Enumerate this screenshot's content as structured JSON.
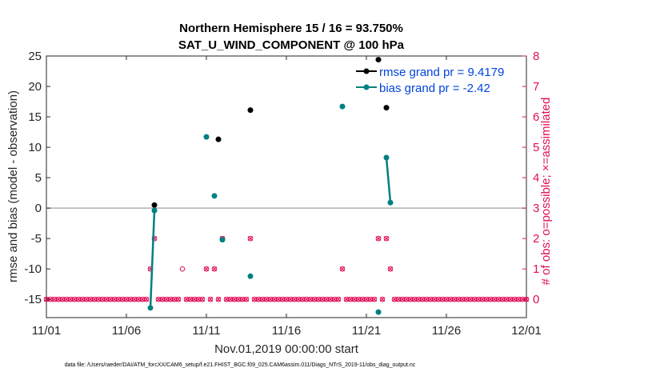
{
  "colors": {
    "rmse": "#000000",
    "bias": "#008080",
    "obs": "#e0105a",
    "zero": "#b0b0b0",
    "legend_text": "#0044dd",
    "axis": "#262626"
  },
  "chart_data": {
    "type": "scatter",
    "title_line1": "Northern Hemisphere 15 / 16 = 93.750%",
    "title_line2": "SAT_U_WIND_COMPONENT @ 100 hPa",
    "xlabel": "Nov.01,2019 00:00:00 start",
    "ylabel": "rmse and bias (model - observation)",
    "ylabel_right": "# of obs: o=possible; ×=assimilated",
    "xlim": [
      0,
      30
    ],
    "ylim": [
      -18,
      25
    ],
    "ylim_right": [
      -0.6,
      8
    ],
    "x_ticks": [
      0,
      5,
      10,
      15,
      20,
      25,
      30
    ],
    "x_tick_labels": [
      "11/01",
      "11/06",
      "11/11",
      "11/16",
      "11/21",
      "11/26",
      "12/01"
    ],
    "y_ticks": [
      -15,
      -10,
      -5,
      0,
      5,
      10,
      15,
      20,
      25
    ],
    "y_ticks_right": [
      0,
      1,
      2,
      3,
      4,
      5,
      6,
      7,
      8
    ],
    "legend": [
      {
        "key": "rmse",
        "label": "rmse grand pr = 9.4179"
      },
      {
        "key": "bias",
        "label": "bias grand pr = -2.42"
      }
    ],
    "rmse_points": [
      [
        6.75,
        0.5
      ],
      [
        10.75,
        11.3
      ],
      [
        12.75,
        16.1
      ],
      [
        20.75,
        24.4
      ],
      [
        21.25,
        16.5
      ]
    ],
    "rmse_lines": [],
    "bias_points": [
      [
        6.5,
        -16.4
      ],
      [
        6.75,
        -0.4
      ],
      [
        10.0,
        11.7
      ],
      [
        10.5,
        2.0
      ],
      [
        11.0,
        -5.2
      ],
      [
        12.75,
        -11.2
      ],
      [
        18.5,
        16.7
      ],
      [
        20.75,
        -17.1
      ],
      [
        21.25,
        8.3
      ],
      [
        21.5,
        0.9
      ]
    ],
    "bias_lines": [
      [
        [
          6.5,
          -16.4
        ],
        [
          6.75,
          -0.4
        ]
      ],
      [
        [
          21.25,
          8.3
        ],
        [
          21.5,
          0.9
        ]
      ]
    ],
    "obs_possible": {
      "step": 0.25,
      "start": 0,
      "end": 30,
      "default": 0,
      "overrides": [
        [
          6.5,
          1
        ],
        [
          6.75,
          2
        ],
        [
          8.5,
          1
        ],
        [
          10.0,
          1
        ],
        [
          10.5,
          1
        ],
        [
          11.0,
          2
        ],
        [
          12.75,
          2
        ],
        [
          18.5,
          1
        ],
        [
          20.75,
          2
        ],
        [
          21.25,
          2
        ],
        [
          21.5,
          1
        ]
      ]
    },
    "obs_assimilated": {
      "step": 0.25,
      "start": 0,
      "end": 30,
      "default": 0,
      "overrides": [
        [
          6.5,
          1
        ],
        [
          6.75,
          2
        ],
        [
          8.5,
          null
        ],
        [
          10.0,
          1
        ],
        [
          10.5,
          1
        ],
        [
          11.0,
          2
        ],
        [
          12.75,
          2
        ],
        [
          18.5,
          1
        ],
        [
          20.75,
          2
        ],
        [
          21.25,
          2
        ],
        [
          21.5,
          1
        ]
      ]
    }
  },
  "footnote": "data file: /Users/raeder/DAI/ATM_forcXX/CAM6_setup/f.e21.FHIST_BGC.f09_025.CAM6assim.011/Diags_NTrS_2019-11/obs_diag_output.nc"
}
